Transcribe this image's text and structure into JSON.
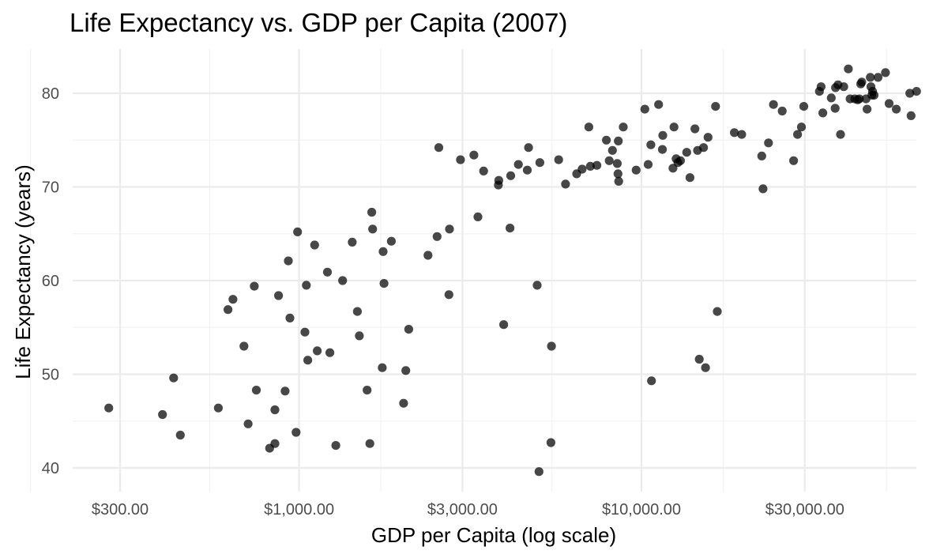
{
  "chart_data": {
    "type": "scatter",
    "title": "Life Expectancy vs. GDP per Capita (2007)",
    "xlabel": "GDP per Capita (log scale)",
    "ylabel": "Life Expectancy (years)",
    "x_scale": "log10",
    "x_ticks": [
      {
        "value": 300,
        "label": "$300.00"
      },
      {
        "value": 1000,
        "label": "$1,000.00"
      },
      {
        "value": 3000,
        "label": "$3,000.00"
      },
      {
        "value": 10000,
        "label": "$10,000.00"
      },
      {
        "value": 30000,
        "label": "$30,000.00"
      }
    ],
    "y_ticks": [
      {
        "value": 40,
        "label": "40"
      },
      {
        "value": 50,
        "label": "50"
      },
      {
        "value": 60,
        "label": "60"
      },
      {
        "value": 70,
        "label": "70"
      },
      {
        "value": 80,
        "label": "80"
      }
    ],
    "xlim": [
      190,
      58000
    ],
    "ylim": [
      37.8,
      84.5
    ],
    "grid": true,
    "legend": "none",
    "point_color": "#000000",
    "points": [
      [
        278,
        46.4
      ],
      [
        399,
        45.7
      ],
      [
        430,
        49.6
      ],
      [
        450,
        43.5
      ],
      [
        581,
        46.4
      ],
      [
        620,
        56.9
      ],
      [
        641,
        58.0
      ],
      [
        690,
        53.0
      ],
      [
        710,
        44.7
      ],
      [
        740,
        59.4
      ],
      [
        750,
        48.3
      ],
      [
        820,
        42.1
      ],
      [
        850,
        42.6
      ],
      [
        850,
        46.2
      ],
      [
        871,
        58.4
      ],
      [
        910,
        48.2
      ],
      [
        930,
        62.1
      ],
      [
        940,
        56.0
      ],
      [
        980,
        43.8
      ],
      [
        990,
        65.2
      ],
      [
        1040,
        54.5
      ],
      [
        1050,
        59.5
      ],
      [
        1060,
        51.5
      ],
      [
        1110,
        63.8
      ],
      [
        1130,
        52.5
      ],
      [
        1210,
        60.9
      ],
      [
        1230,
        52.3
      ],
      [
        1280,
        42.4
      ],
      [
        1340,
        60.0
      ],
      [
        1430,
        64.1
      ],
      [
        1480,
        56.7
      ],
      [
        1500,
        54.1
      ],
      [
        1580,
        48.3
      ],
      [
        1610,
        42.6
      ],
      [
        1630,
        67.3
      ],
      [
        1640,
        65.5
      ],
      [
        1750,
        50.7
      ],
      [
        1760,
        63.1
      ],
      [
        1770,
        59.7
      ],
      [
        1860,
        64.2
      ],
      [
        2020,
        46.9
      ],
      [
        2050,
        50.4
      ],
      [
        2090,
        54.8
      ],
      [
        2380,
        62.7
      ],
      [
        2530,
        64.7
      ],
      [
        2560,
        74.2
      ],
      [
        2740,
        58.5
      ],
      [
        2750,
        65.5
      ],
      [
        2960,
        72.9
      ],
      [
        3240,
        73.4
      ],
      [
        3330,
        66.8
      ],
      [
        3460,
        71.7
      ],
      [
        3820,
        70.2
      ],
      [
        3830,
        70.7
      ],
      [
        3960,
        55.3
      ],
      [
        4150,
        71.2
      ],
      [
        4130,
        65.6
      ],
      [
        4370,
        72.4
      ],
      [
        4640,
        71.8
      ],
      [
        4680,
        74.2
      ],
      [
        4960,
        59.5
      ],
      [
        5020,
        39.6
      ],
      [
        5050,
        72.6
      ],
      [
        5460,
        53.0
      ],
      [
        5440,
        42.7
      ],
      [
        5730,
        72.9
      ],
      [
        6000,
        70.3
      ],
      [
        6470,
        71.4
      ],
      [
        6710,
        71.9
      ],
      [
        7020,
        76.4
      ],
      [
        7090,
        72.2
      ],
      [
        7410,
        72.3
      ],
      [
        7900,
        75.0
      ],
      [
        8050,
        72.8
      ],
      [
        8230,
        73.9
      ],
      [
        8500,
        72.5
      ],
      [
        8560,
        74.9
      ],
      [
        8540,
        71.4
      ],
      [
        8580,
        70.6
      ],
      [
        8850,
        76.4
      ],
      [
        9650,
        71.8
      ],
      [
        10230,
        78.3
      ],
      [
        10460,
        72.4
      ],
      [
        10650,
        74.5
      ],
      [
        10700,
        49.3
      ],
      [
        11220,
        78.8
      ],
      [
        11510,
        74.0
      ],
      [
        11540,
        75.5
      ],
      [
        12360,
        72.0
      ],
      [
        12450,
        76.4
      ],
      [
        12630,
        73.0
      ],
      [
        12780,
        72.6
      ],
      [
        13000,
        72.8
      ],
      [
        13560,
        73.7
      ],
      [
        13860,
        71.0
      ],
      [
        14330,
        76.2
      ],
      [
        14580,
        73.9
      ],
      [
        14750,
        51.6
      ],
      [
        15180,
        74.2
      ],
      [
        15390,
        50.7
      ],
      [
        15650,
        75.3
      ],
      [
        16460,
        78.6
      ],
      [
        16650,
        56.7
      ],
      [
        18680,
        75.8
      ],
      [
        19620,
        75.6
      ],
      [
        22460,
        73.3
      ],
      [
        22650,
        69.8
      ],
      [
        23500,
        74.7
      ],
      [
        24300,
        78.8
      ],
      [
        25770,
        78.1
      ],
      [
        27820,
        72.8
      ],
      [
        28570,
        75.6
      ],
      [
        29330,
        76.4
      ],
      [
        29800,
        78.6
      ],
      [
        33100,
        80.2
      ],
      [
        33480,
        80.7
      ],
      [
        33860,
        77.9
      ],
      [
        35850,
        79.5
      ],
      [
        36800,
        78.4
      ],
      [
        36900,
        80.6
      ],
      [
        37500,
        80.9
      ],
      [
        38140,
        75.6
      ],
      [
        38980,
        80.7
      ],
      [
        40200,
        82.6
      ],
      [
        40680,
        79.4
      ],
      [
        42000,
        79.4
      ],
      [
        42800,
        79.3
      ],
      [
        43300,
        79.4
      ],
      [
        43700,
        81.0
      ],
      [
        44000,
        81.2
      ],
      [
        45300,
        79.4
      ],
      [
        45600,
        78.3
      ],
      [
        46600,
        81.7
      ],
      [
        46800,
        80.7
      ],
      [
        47100,
        79.8
      ],
      [
        47300,
        80.2
      ],
      [
        47800,
        79.8
      ],
      [
        49100,
        81.7
      ],
      [
        51600,
        82.2
      ],
      [
        52900,
        78.9
      ],
      [
        55500,
        78.3
      ],
      [
        60800,
        80.0
      ],
      [
        61300,
        77.6
      ],
      [
        63600,
        80.2
      ]
    ]
  }
}
